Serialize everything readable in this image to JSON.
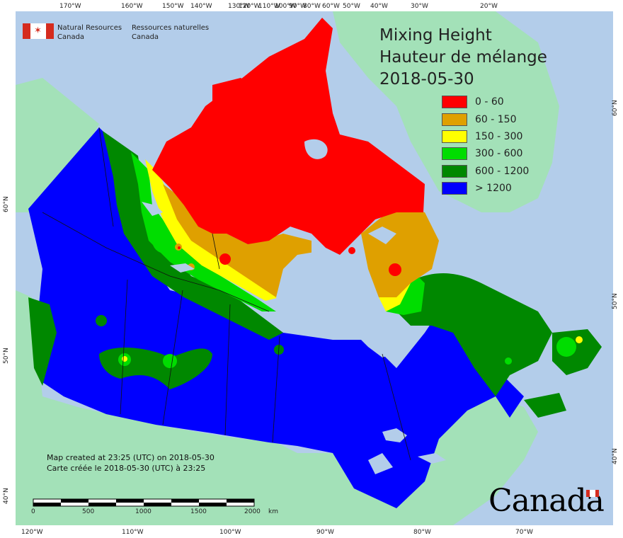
{
  "map": {
    "title_en": "Mixing Height",
    "title_fr": "Hauteur de mélange",
    "date": "2018-05-30",
    "legend": [
      {
        "label": "0 - 60",
        "color": "#ff0000"
      },
      {
        "label": "60 - 150",
        "color": "#dfa000"
      },
      {
        "label": "150 - 300",
        "color": "#ffff00"
      },
      {
        "label": "300 - 600",
        "color": "#00dd00"
      },
      {
        "label": "600 - 1200",
        "color": "#008800"
      },
      {
        "label": "> 1200",
        "color": "#0000ff"
      }
    ],
    "colors": {
      "ocean": "#b3cdea",
      "foreign_land": "#a3e1b8",
      "water": "#b3cdea"
    },
    "org": {
      "en_line1": "Natural Resources",
      "en_line2": "Canada",
      "fr_line1": "Ressources naturelles",
      "fr_line2": "Canada"
    },
    "credit": {
      "en": "Map created at 23:25 (UTC) on 2018-05-30",
      "fr": "Carte créée le 2018-05-30 (UTC) à 23:25"
    },
    "scale": {
      "ticks": [
        "0",
        "500",
        "1000",
        "1500",
        "2000"
      ],
      "unit": "km"
    },
    "wordmark": "Canada",
    "lon_top": [
      "170°W",
      "160°W",
      "150°W",
      "140°W",
      "130°W",
      "120°W",
      "110°W",
      "100°W",
      "90°W",
      "80°W",
      "70°W",
      "60°W",
      "50°W",
      "40°W",
      "30°W",
      "20°W"
    ],
    "lon_bottom": [
      "120°W",
      "110°W",
      "100°W",
      "90°W",
      "80°W",
      "70°W"
    ],
    "lat_left": [
      "60°N",
      "50°N",
      "40°N"
    ],
    "lat_right": [
      "60°N",
      "50°N",
      "40°N"
    ]
  }
}
